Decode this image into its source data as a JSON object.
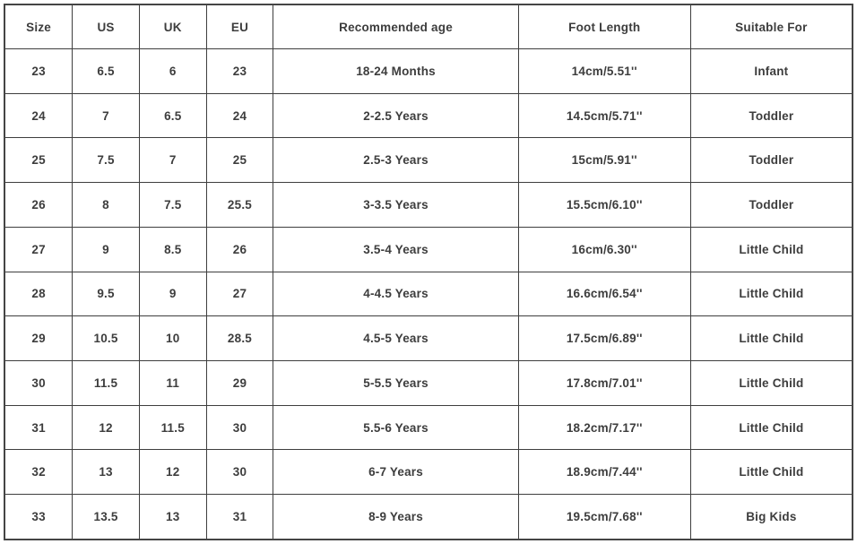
{
  "colors": {
    "border": "#3e3e3e",
    "outer_border": "#454545",
    "text": "#3d3d3d",
    "background": "#ffffff"
  },
  "chart_data": {
    "type": "table",
    "columns": [
      "Size",
      "US",
      "UK",
      "EU",
      "Recommended age",
      "Foot Length",
      "Suitable For"
    ],
    "rows": [
      [
        "23",
        "6.5",
        "6",
        "23",
        "18-24 Months",
        "14cm/5.51''",
        "Infant"
      ],
      [
        "24",
        "7",
        "6.5",
        "24",
        "2-2.5 Years",
        "14.5cm/5.71''",
        "Toddler"
      ],
      [
        "25",
        "7.5",
        "7",
        "25",
        "2.5-3 Years",
        "15cm/5.91''",
        "Toddler"
      ],
      [
        "26",
        "8",
        "7.5",
        "25.5",
        "3-3.5 Years",
        "15.5cm/6.10''",
        "Toddler"
      ],
      [
        "27",
        "9",
        "8.5",
        "26",
        "3.5-4 Years",
        "16cm/6.30''",
        "Little Child"
      ],
      [
        "28",
        "9.5",
        "9",
        "27",
        "4-4.5 Years",
        "16.6cm/6.54''",
        "Little Child"
      ],
      [
        "29",
        "10.5",
        "10",
        "28.5",
        "4.5-5 Years",
        "17.5cm/6.89''",
        "Little Child"
      ],
      [
        "30",
        "11.5",
        "11",
        "29",
        "5-5.5 Years",
        "17.8cm/7.01''",
        "Little Child"
      ],
      [
        "31",
        "12",
        "11.5",
        "30",
        "5.5-6 Years",
        "18.2cm/7.17''",
        "Little Child"
      ],
      [
        "32",
        "13",
        "12",
        "30",
        "6-7 Years",
        "18.9cm/7.44''",
        "Little Child"
      ],
      [
        "33",
        "13.5",
        "13",
        "31",
        "8-9 Years",
        "19.5cm/7.68''",
        "Big Kids"
      ]
    ]
  }
}
